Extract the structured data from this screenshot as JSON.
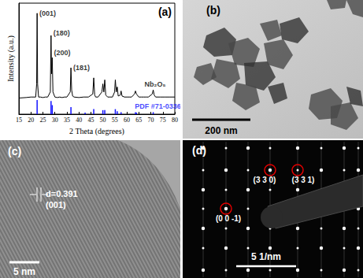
{
  "chart_data": {
    "type": "line",
    "title": "(a)",
    "xlabel": "2 Theta (degrees)",
    "ylabel": "Intensity (a.u.)",
    "xlim": [
      15,
      80
    ],
    "xticks": [
      15,
      20,
      25,
      30,
      35,
      40,
      45,
      50,
      55,
      60,
      65,
      70,
      75,
      80
    ],
    "ylim": [
      0,
      110
    ],
    "tick_labels": "x",
    "grid": false,
    "series": [
      {
        "type": "line",
        "color": "#000000",
        "x": [
          15,
          18,
          20,
          22,
          22.4,
          22.6,
          22.8,
          23.2,
          24,
          25,
          26,
          27,
          28.1,
          28.4,
          28.6,
          28.9,
          29.2,
          30,
          31,
          32,
          33,
          34,
          35,
          36.4,
          36.7,
          37,
          37.4,
          38,
          40,
          42,
          44,
          45.8,
          46.2,
          46.6,
          47,
          48,
          49.6,
          50.0,
          50.4,
          50.8,
          51.2,
          52,
          53,
          54,
          54.9,
          55.2,
          55.6,
          56,
          56.4,
          57.3,
          57.6,
          58,
          59,
          60,
          61,
          62,
          63.2,
          63.6,
          64,
          65,
          66,
          67,
          68,
          69,
          70.6,
          71,
          71.4,
          72,
          74,
          76,
          78,
          80
        ],
        "values": [
          16,
          16.5,
          17,
          17,
          30,
          100,
          30,
          17,
          17,
          16.5,
          17,
          17,
          22,
          78,
          40,
          56,
          22,
          17,
          16.5,
          17,
          16.5,
          17,
          17,
          22,
          46,
          24,
          18,
          17,
          16.5,
          17,
          17,
          20,
          36,
          19,
          17,
          17,
          22,
          30,
          22,
          34,
          19,
          17,
          17,
          17,
          22,
          34,
          22,
          27,
          18,
          19,
          23,
          18,
          17,
          17,
          17,
          17,
          20,
          23,
          20,
          17,
          17,
          17,
          17,
          17,
          20,
          24,
          19,
          17,
          17,
          17,
          17,
          17
        ]
      },
      {
        "type": "bar",
        "color": "#1414ff",
        "x": [
          22.6,
          28.4,
          28.9,
          36.7,
          42.6,
          46.2,
          50.0,
          50.8,
          55.2,
          56.0,
          57.6,
          63.6,
          64.0,
          71.0
        ],
        "values": [
          14,
          13,
          9,
          7,
          1.5,
          5,
          4,
          4,
          5,
          3,
          2,
          2,
          1.5,
          2
        ]
      }
    ],
    "annotations": [
      {
        "text": "(001)",
        "x": 23.2,
        "y": 100,
        "color": "#000000"
      },
      {
        "text": "(180)",
        "x": 29,
        "y": 80,
        "color": "#000000"
      },
      {
        "text": "(200)",
        "x": 29.3,
        "y": 61,
        "color": "#000000"
      },
      {
        "text": "(181)",
        "x": 37.3,
        "y": 46,
        "color": "#000000"
      },
      {
        "text": "Nb₂O₅",
        "x": 67,
        "y": 30,
        "color": "#000000"
      },
      {
        "text": "PDF #71-0336",
        "x": 63,
        "y": 8,
        "color": "#1414ff"
      }
    ]
  },
  "panels": [
    {
      "label": "(b)",
      "scale_bar": "200 nm"
    },
    {
      "label": "(c)",
      "annotation": "d=0.391",
      "plane": "(001)",
      "scale_bar": "5 nm"
    },
    {
      "label": "(d)",
      "spots": [
        "(3 3 0)",
        "(3 3 1)",
        "(0 0 -1)"
      ],
      "scale_bar": "5 1/nm"
    }
  ]
}
